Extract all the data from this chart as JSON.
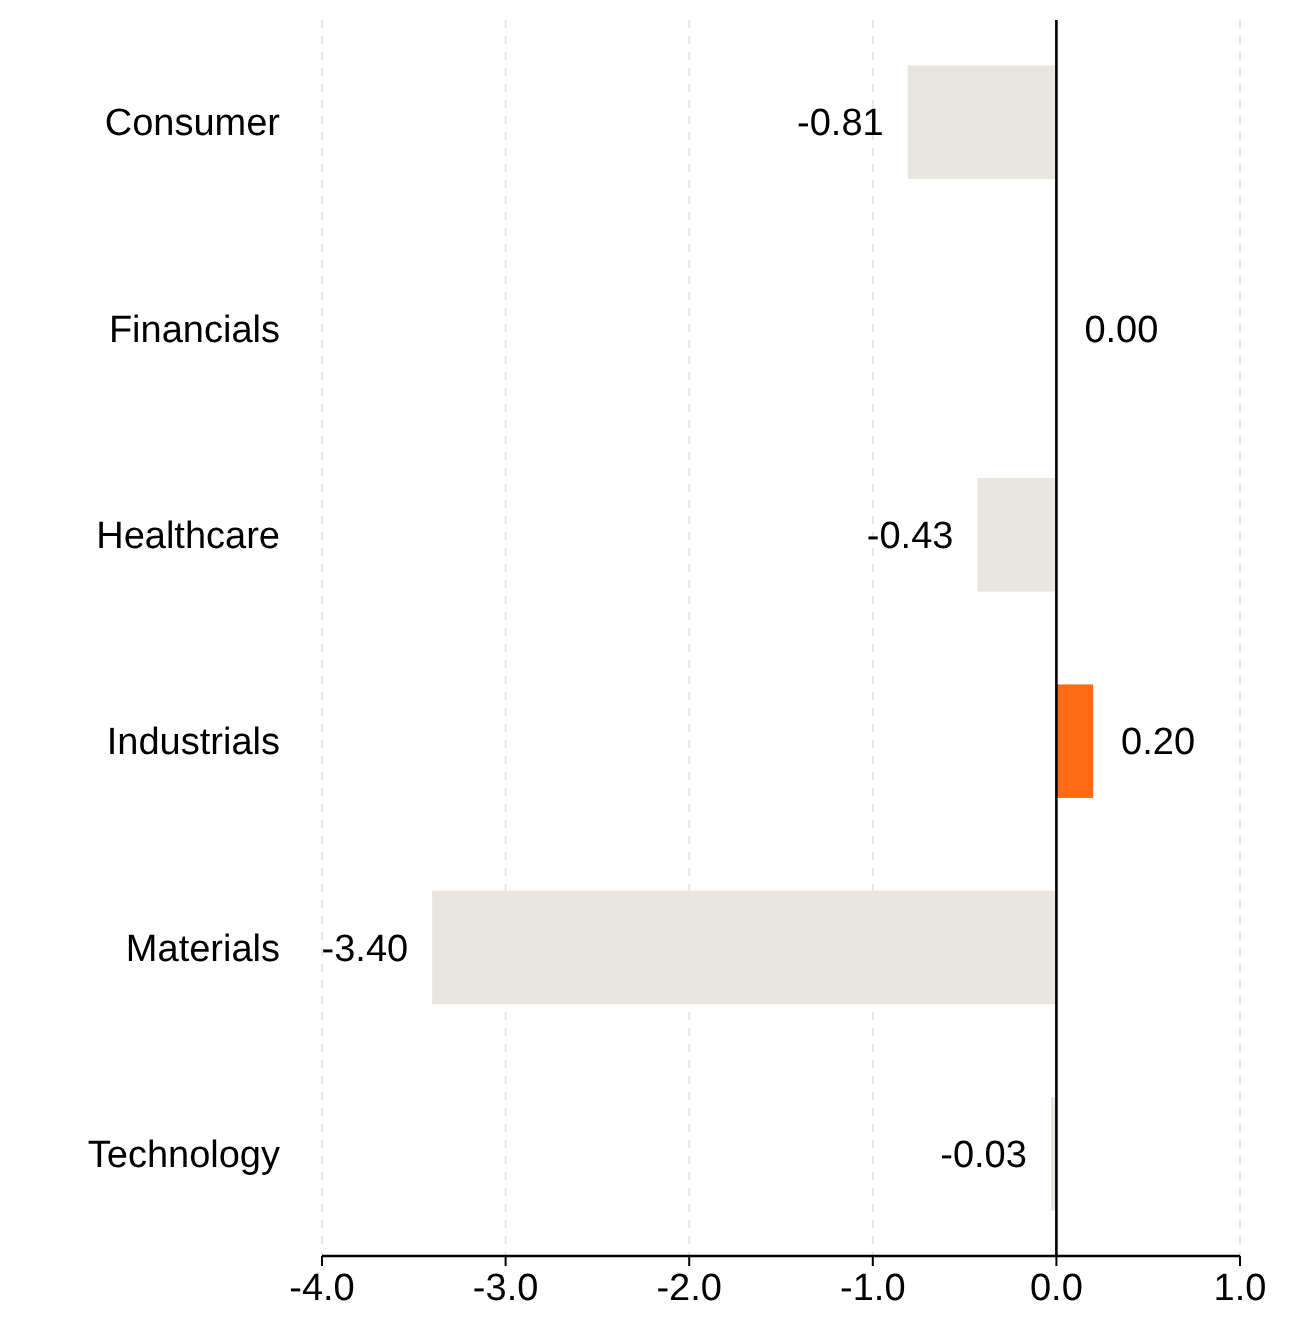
{
  "chart_data": {
    "type": "bar",
    "orientation": "horizontal",
    "categories": [
      "Consumer",
      "Financials",
      "Healthcare",
      "Industrials",
      "Materials",
      "Technology"
    ],
    "values": [
      -0.81,
      0.0,
      -0.43,
      0.2,
      -3.4,
      -0.03
    ],
    "colors": [
      "#e8e6df",
      "#e8e6df",
      "#e8e6df",
      "#ff6a13",
      "#e8e6df",
      "#e8e6df"
    ],
    "xlim": [
      -4.0,
      1.0
    ],
    "xticks": [
      {
        "value": -4,
        "label": "-4.0"
      },
      {
        "value": -3,
        "label": "-3.0"
      },
      {
        "value": -2,
        "label": "-2.0"
      },
      {
        "value": -1,
        "label": "-1.0"
      },
      {
        "value": 0,
        "label": "0.0"
      },
      {
        "value": 1,
        "label": "1.0"
      }
    ],
    "value_labels": [
      "-0.81",
      "0.00",
      "-0.43",
      "0.20",
      "-3.40",
      "-0.03"
    ],
    "grid": "x"
  }
}
